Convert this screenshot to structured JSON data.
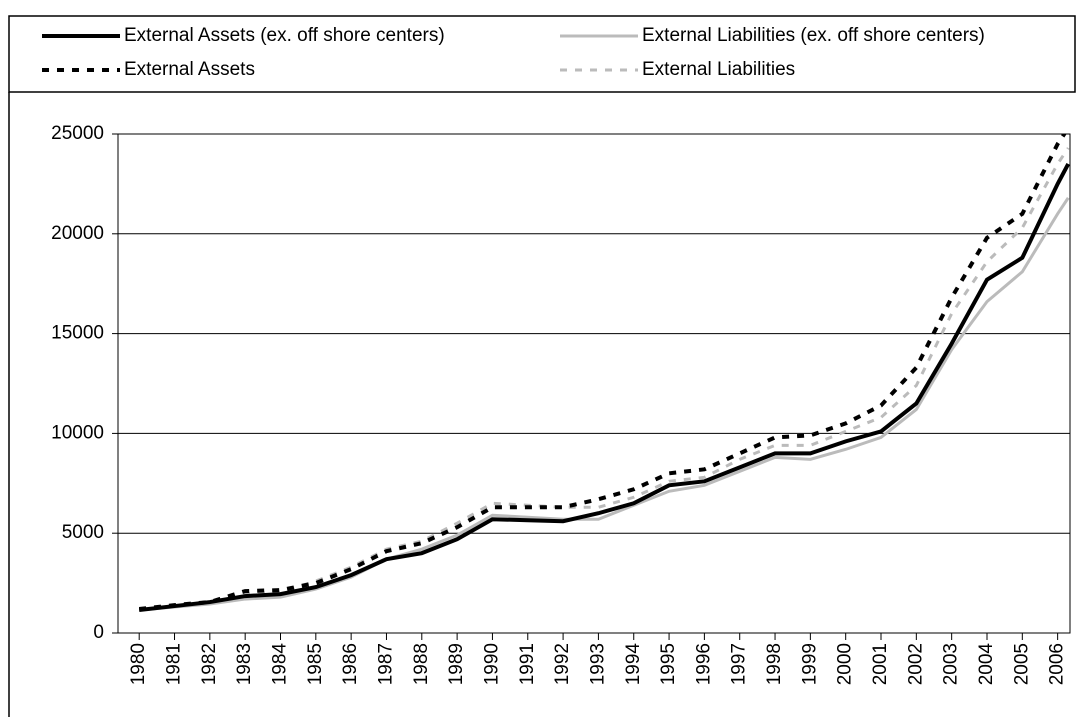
{
  "chart_data": {
    "type": "line",
    "x": [
      1980,
      1981,
      1982,
      1983,
      1984,
      1985,
      1986,
      1987,
      1988,
      1989,
      1990,
      1991,
      1992,
      1993,
      1994,
      1995,
      1996,
      1997,
      1998,
      1999,
      2000,
      2001,
      2002,
      2003,
      2004,
      2005,
      2006,
      2006.3
    ],
    "series": [
      {
        "name": "External Assets (ex. off shore centers)",
        "color": "#000000",
        "dashed": false,
        "values": [
          1150,
          1350,
          1550,
          1850,
          1950,
          2300,
          2900,
          3700,
          4000,
          4700,
          5700,
          5650,
          5600,
          6000,
          6500,
          7400,
          7600,
          8300,
          9000,
          9000,
          9600,
          10100,
          11500,
          14500,
          17700,
          18800,
          22500,
          23500
        ]
      },
      {
        "name": "External Liabilities (ex. off shore centers)",
        "color": "#bbbbbb",
        "dashed": false,
        "values": [
          1150,
          1300,
          1450,
          1700,
          1800,
          2200,
          2800,
          3700,
          4200,
          4900,
          5900,
          5800,
          5700,
          5700,
          6400,
          7100,
          7400,
          8100,
          8800,
          8700,
          9200,
          9800,
          11200,
          14200,
          16600,
          18100,
          21000,
          21800
        ]
      },
      {
        "name": "External Assets",
        "color": "#000000",
        "dashed": true,
        "values": [
          1200,
          1400,
          1550,
          2100,
          2150,
          2500,
          3200,
          4100,
          4500,
          5300,
          6300,
          6300,
          6300,
          6700,
          7200,
          8000,
          8200,
          9000,
          9800,
          9900,
          10500,
          11400,
          13300,
          16800,
          19800,
          21000,
          24500,
          25300
        ]
      },
      {
        "name": "External Liabilities",
        "color": "#bbbbbb",
        "dashed": true,
        "values": [
          1200,
          1400,
          1550,
          1950,
          2050,
          2600,
          3300,
          4200,
          4600,
          5500,
          6500,
          6400,
          6300,
          6300,
          6800,
          7600,
          7800,
          8700,
          9400,
          9400,
          10100,
          10800,
          12400,
          16000,
          18600,
          20300,
          23500,
          24300
        ]
      }
    ],
    "xlim": [
      1979.4,
      2006.35
    ],
    "xticks": [
      1980,
      1981,
      1982,
      1983,
      1984,
      1985,
      1986,
      1987,
      1988,
      1989,
      1990,
      1991,
      1992,
      1993,
      1994,
      1995,
      1996,
      1997,
      1998,
      1999,
      2000,
      2001,
      2002,
      2003,
      2004,
      2005,
      2006
    ],
    "ylim": [
      0,
      25000
    ],
    "yticks": [
      0,
      5000,
      10000,
      15000,
      20000,
      25000
    ],
    "grid": true
  }
}
